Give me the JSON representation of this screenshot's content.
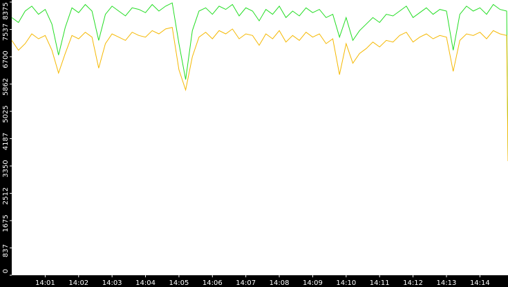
{
  "chart_data": {
    "type": "line",
    "x": [
      0,
      0.2,
      0.4,
      0.6,
      0.8,
      1,
      1.2,
      1.4,
      1.6,
      1.8,
      2,
      2.2,
      2.4,
      2.6,
      2.8,
      3,
      3.2,
      3.4,
      3.6,
      3.8,
      4,
      4.2,
      4.4,
      4.6,
      4.8,
      5,
      5.2,
      5.4,
      5.6,
      5.8,
      6,
      6.2,
      6.4,
      6.6,
      6.8,
      7,
      7.2,
      7.4,
      7.6,
      7.8,
      8,
      8.2,
      8.4,
      8.6,
      8.8,
      9,
      9.2,
      9.4,
      9.6,
      9.8,
      10,
      10.2,
      10.4,
      10.6,
      10.8,
      11,
      11.2,
      11.4,
      11.6,
      11.8,
      12,
      12.2,
      12.4,
      12.6,
      12.8,
      13,
      13.2,
      13.4,
      13.6,
      13.8,
      14,
      14.2,
      14.4,
      14.6,
      14.8,
      14.84
    ],
    "series": [
      {
        "color": "#22dd22",
        "values": [
          7900,
          7750,
          8100,
          8250,
          8000,
          8150,
          7700,
          6750,
          7600,
          8200,
          8050,
          8300,
          8100,
          7200,
          8000,
          8250,
          8100,
          7950,
          8200,
          8150,
          8050,
          8300,
          8100,
          8250,
          8350,
          7100,
          6000,
          7500,
          8100,
          8200,
          8000,
          8250,
          8150,
          8300,
          7950,
          8200,
          8100,
          7800,
          8150,
          8000,
          8250,
          7900,
          8100,
          7950,
          8200,
          8050,
          8150,
          7900,
          8000,
          7300,
          7900,
          7200,
          7500,
          7700,
          7900,
          7750,
          8000,
          7950,
          8100,
          8250,
          7900,
          8050,
          8200,
          8000,
          8150,
          8100,
          6900,
          8000,
          8250,
          8100,
          8200,
          8000,
          8300,
          8150,
          8100,
          3650
        ]
      },
      {
        "color": "#f5b800",
        "values": [
          7200,
          6900,
          7100,
          7400,
          7250,
          7350,
          6900,
          6200,
          6800,
          7350,
          7250,
          7450,
          7300,
          6350,
          7100,
          7400,
          7300,
          7200,
          7450,
          7350,
          7300,
          7500,
          7400,
          7550,
          7600,
          6300,
          5680,
          6700,
          7300,
          7450,
          7250,
          7500,
          7400,
          7550,
          7250,
          7400,
          7350,
          7050,
          7400,
          7250,
          7500,
          7150,
          7350,
          7200,
          7450,
          7300,
          7400,
          7100,
          7250,
          6150,
          7100,
          6500,
          6800,
          6950,
          7150,
          7000,
          7200,
          7150,
          7350,
          7450,
          7150,
          7300,
          7400,
          7250,
          7350,
          7300,
          6250,
          7200,
          7400,
          7350,
          7450,
          7250,
          7500,
          7400,
          7350,
          3500
        ]
      }
    ],
    "xlim": [
      0,
      14.84
    ],
    "xticks": [
      {
        "value": 1,
        "label": "14:01"
      },
      {
        "value": 2,
        "label": "14:02"
      },
      {
        "value": 3,
        "label": "14:03"
      },
      {
        "value": 4,
        "label": "14:04"
      },
      {
        "value": 5,
        "label": "14:05"
      },
      {
        "value": 6,
        "label": "14:06"
      },
      {
        "value": 7,
        "label": "14:07"
      },
      {
        "value": 8,
        "label": "14:08"
      },
      {
        "value": 9,
        "label": "14:09"
      },
      {
        "value": 10,
        "label": "14:10"
      },
      {
        "value": 11,
        "label": "14:11"
      },
      {
        "value": 12,
        "label": "14:12"
      },
      {
        "value": 13,
        "label": "14:13"
      },
      {
        "value": 14,
        "label": "14:14"
      }
    ],
    "ylim": [
      0,
      8375
    ],
    "yticks": [
      0,
      837,
      1675,
      2512,
      3350,
      4187,
      5025,
      5862,
      6700,
      7537,
      8375
    ]
  }
}
